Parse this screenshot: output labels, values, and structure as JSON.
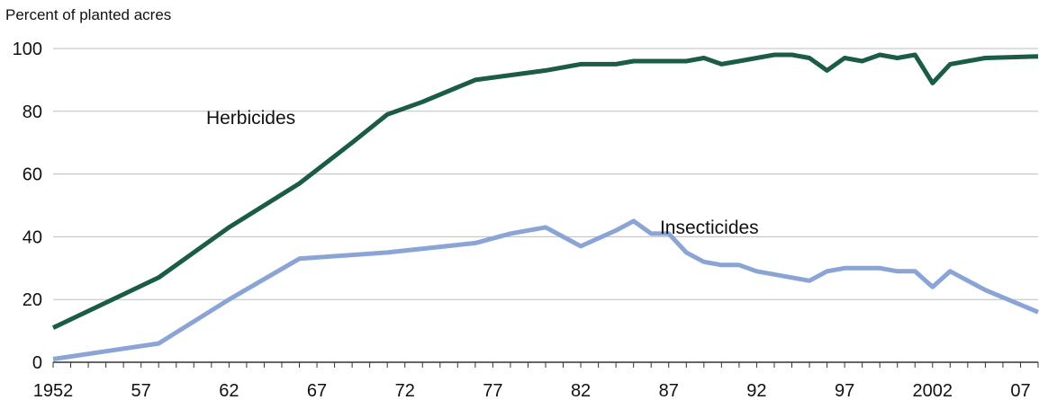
{
  "chart_data": {
    "type": "line",
    "title": "",
    "xlabel": "",
    "ylabel": "Percent of planted acres",
    "xlim": [
      1952,
      2008
    ],
    "ylim": [
      0,
      100
    ],
    "grid": true,
    "yticks": [
      0,
      20,
      40,
      60,
      80,
      100
    ],
    "ytick_labels": [
      "0",
      "20",
      "40",
      "60",
      "80",
      "100"
    ],
    "xticks": [
      1952,
      1957,
      1962,
      1967,
      1972,
      1977,
      1982,
      1987,
      1992,
      1997,
      2002,
      2007
    ],
    "xtick_labels": [
      "1952",
      "57",
      "62",
      "67",
      "72",
      "77",
      "82",
      "87",
      "92",
      "97",
      "2002",
      "07"
    ],
    "colors": {
      "herbicides": "#1a5c45",
      "insecticides": "#8aa4d6",
      "grid": "#bdbdbd",
      "axis": "#333333"
    },
    "series": [
      {
        "name": "Herbicides",
        "key": "herbicides",
        "x": [
          1952,
          1958,
          1962,
          1966,
          1969,
          1971,
          1973,
          1976,
          1980,
          1982,
          1984,
          1985,
          1986,
          1987,
          1988,
          1989,
          1990,
          1991,
          1992,
          1993,
          1994,
          1995,
          1996,
          1997,
          1998,
          1999,
          2000,
          2001,
          2002,
          2003,
          2005,
          2008
        ],
        "values": [
          11,
          27,
          43,
          57,
          70,
          79,
          83,
          90,
          93,
          95,
          95,
          96,
          96,
          96,
          96,
          97,
          95,
          96,
          97,
          98,
          98,
          97,
          93,
          97,
          96,
          98,
          97,
          98,
          89,
          95,
          97,
          97.5
        ]
      },
      {
        "name": "Insecticides",
        "key": "insecticides",
        "x": [
          1952,
          1958,
          1962,
          1966,
          1971,
          1976,
          1978,
          1980,
          1982,
          1984,
          1985,
          1986,
          1987,
          1988,
          1989,
          1990,
          1991,
          1992,
          1993,
          1994,
          1995,
          1996,
          1997,
          1998,
          1999,
          2000,
          2001,
          2002,
          2003,
          2005,
          2008
        ],
        "values": [
          1,
          6,
          20,
          33,
          35,
          38,
          41,
          43,
          37,
          42,
          45,
          41,
          41,
          35,
          32,
          31,
          31,
          29,
          28,
          27,
          26,
          29,
          30,
          30,
          30,
          29,
          29,
          24,
          29,
          23,
          16
        ]
      }
    ],
    "annotations": [
      {
        "key": "herbicides",
        "text": "Herbicides",
        "x": 1960.7,
        "y": 76
      },
      {
        "key": "insecticides",
        "text": "Insecticides",
        "x": 1986.5,
        "y": 41
      }
    ]
  }
}
